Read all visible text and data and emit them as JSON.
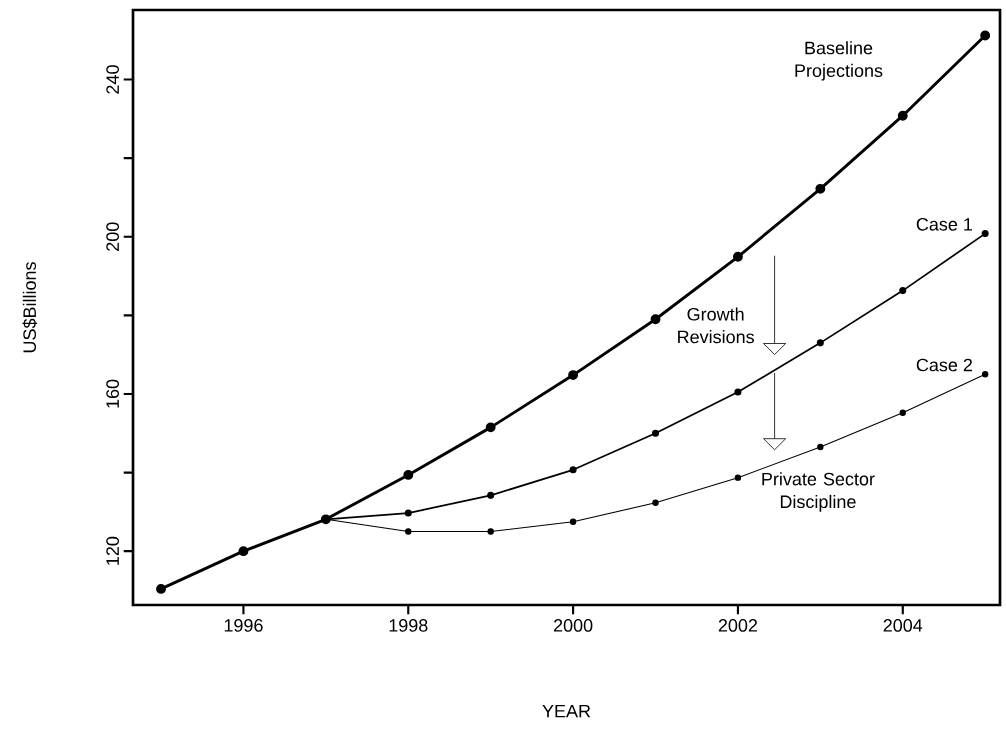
{
  "chart_data": {
    "type": "line",
    "xlabel": "YEAR",
    "ylabel": "US$Billions",
    "x": [
      1995,
      1996,
      1997,
      1998,
      1999,
      2000,
      2001,
      2002,
      2003,
      2004,
      2005
    ],
    "series": [
      {
        "name": "Baseline Projections",
        "color": "#000000",
        "values": [
          110.4,
          120,
          128.1,
          139.4,
          151.5,
          164.8,
          179.0,
          194.9,
          212.2,
          230.8,
          251.2
        ]
      },
      {
        "name": "Case 1",
        "color": "#000000",
        "values": [
          null,
          null,
          128.1,
          129.7,
          134.2,
          140.7,
          150.0,
          160.5,
          173.0,
          186.3,
          200.8
        ]
      },
      {
        "name": "Case 2",
        "color": "#000000",
        "values": [
          null,
          null,
          128.1,
          125.0,
          125.0,
          127.5,
          132.3,
          138.7,
          146.5,
          155.2,
          165.0
        ]
      }
    ],
    "xlim": [
      1994.66,
      2005.18
    ],
    "ylim": [
      106.3,
      257.7
    ],
    "xticks": [
      1996,
      1998,
      2000,
      2002,
      2004
    ],
    "yticks": [
      120,
      {
        "value": 140,
        "label": null
      },
      160,
      {
        "value": 180,
        "label": null
      },
      200,
      {
        "value": 220,
        "label": null
      },
      240
    ],
    "marker": "circle",
    "line_style": "solid",
    "grid": false,
    "legend": false,
    "annotations": [
      "Growth Revisions",
      "Private Sector Discipline"
    ]
  }
}
